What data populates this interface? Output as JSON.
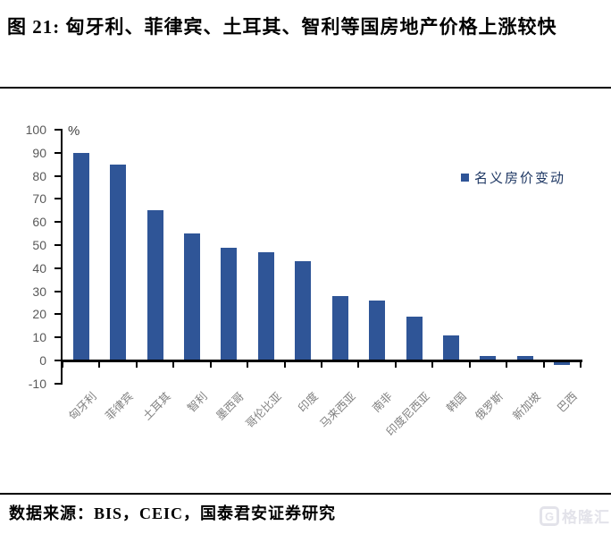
{
  "figure_title": "图 21: 匈牙利、菲律宾、土耳其、智利等国房地产价格上涨较快",
  "source_note": "数据来源：BIS，CEIC，国泰君安证券研究",
  "watermark": {
    "logo_letter": "G",
    "brand": "格隆汇"
  },
  "chart_data": {
    "type": "bar",
    "title": "图 21: 匈牙利、菲律宾、土耳其、智利等国房地产价格上涨较快",
    "unit": "%",
    "categories": [
      "匈牙利",
      "菲律宾",
      "土耳其",
      "智利",
      "墨西哥",
      "哥伦比亚",
      "印度",
      "马来西亚",
      "南非",
      "印度尼西亚",
      "韩国",
      "俄罗斯",
      "新加坡",
      "巴西"
    ],
    "values": [
      90,
      85,
      65,
      55,
      49,
      47,
      43,
      28,
      26,
      19,
      11,
      2,
      2,
      -1
    ],
    "legend": [
      "名义房价变动"
    ],
    "legend_position": "upper right",
    "xlabel": "",
    "ylabel": "%",
    "ylim": [
      -10,
      100
    ],
    "ytick_step": 10,
    "grid": false,
    "colors": {
      "bar": "#2F5597",
      "axis": "#000000",
      "y_tick_label": "#595959",
      "x_tick_label": "#808080",
      "legend_text": "#1F3864"
    }
  }
}
